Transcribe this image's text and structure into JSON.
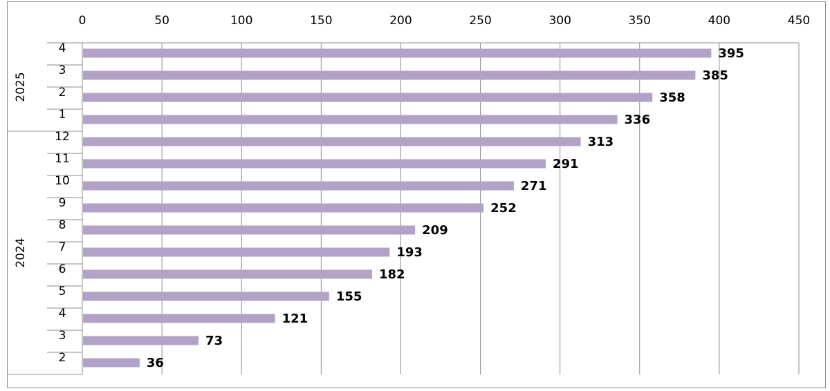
{
  "chart_data": {
    "type": "bar",
    "orientation": "horizontal",
    "title": "",
    "xlabel": "",
    "ylabel": "",
    "xlim": [
      0,
      450
    ],
    "x_ticks": [
      0,
      50,
      100,
      150,
      200,
      250,
      300,
      350,
      400,
      450
    ],
    "x_axis_position": "top",
    "grid": true,
    "data_labels": true,
    "bar_color": "#b3a2c7",
    "groups": [
      {
        "name": "2025",
        "categories": [
          "4",
          "3",
          "2",
          "1"
        ],
        "values": [
          395,
          385,
          358,
          336
        ]
      },
      {
        "name": "2024",
        "categories": [
          "12",
          "11",
          "10",
          "9",
          "8",
          "7",
          "6",
          "5",
          "4",
          "3",
          "2"
        ],
        "values": [
          313,
          291,
          271,
          252,
          209,
          193,
          182,
          155,
          121,
          73,
          36
        ]
      }
    ]
  }
}
